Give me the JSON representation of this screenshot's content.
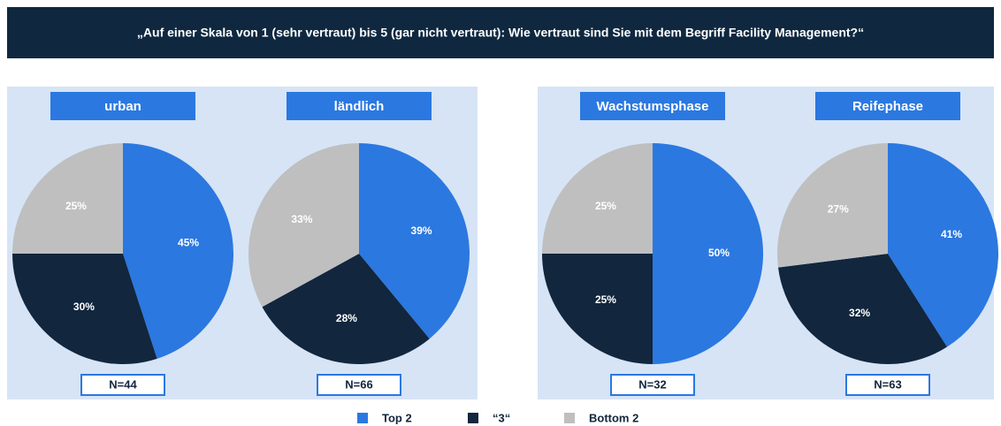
{
  "title": "„Auf einer Skala von 1 (sehr vertraut) bis 5 (gar nicht vertraut): Wie vertraut sind Sie mit dem  Begriff Facility Management?“",
  "chart_data": [
    {
      "type": "pie",
      "title": "urban",
      "categories": [
        "Top 2",
        "“3“",
        "Bottom 2"
      ],
      "values": [
        45,
        30,
        25
      ],
      "value_labels": [
        "45%",
        "30%",
        "25%"
      ],
      "colors": [
        "#2b78e0",
        "#12263d",
        "#bfbfbf"
      ],
      "note": "N=44"
    },
    {
      "type": "pie",
      "title": "ländlich",
      "categories": [
        "Top 2",
        "“3“",
        "Bottom 2"
      ],
      "values": [
        39,
        28,
        33
      ],
      "value_labels": [
        "39%",
        "28%",
        "33%"
      ],
      "colors": [
        "#2b78e0",
        "#12263d",
        "#bfbfbf"
      ],
      "note": "N=66"
    },
    {
      "type": "pie",
      "title": "Wachstumsphase",
      "categories": [
        "Top 2",
        "“3“",
        "Bottom 2"
      ],
      "values": [
        50,
        25,
        25
      ],
      "value_labels": [
        "50%",
        "25%",
        "25%"
      ],
      "colors": [
        "#2b78e0",
        "#12263d",
        "#bfbfbf"
      ],
      "note": "N=32"
    },
    {
      "type": "pie",
      "title": "Reifephase",
      "categories": [
        "Top 2",
        "“3“",
        "Bottom 2"
      ],
      "values": [
        41,
        32,
        27
      ],
      "value_labels": [
        "41%",
        "32%",
        "27%"
      ],
      "colors": [
        "#2b78e0",
        "#12263d",
        "#bfbfbf"
      ],
      "note": "N=63"
    }
  ]
}
